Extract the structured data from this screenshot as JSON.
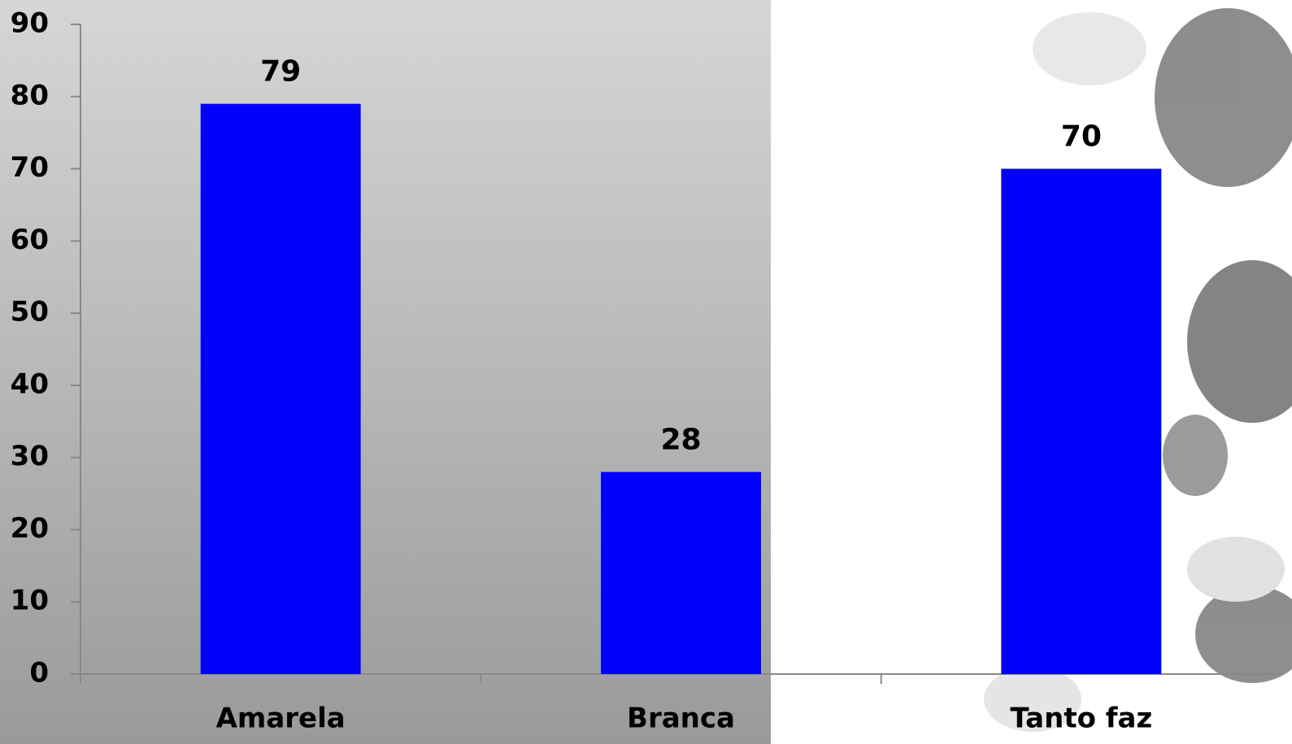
{
  "chart_data": {
    "type": "bar",
    "categories": [
      "Amarela",
      "Branca",
      "Tanto faz"
    ],
    "values": [
      79,
      28,
      70
    ],
    "color": "#0000ff",
    "ylim": [
      0,
      90
    ],
    "yticks": [
      0,
      10,
      20,
      30,
      40,
      50,
      60,
      70,
      80,
      90
    ],
    "grid": false
  }
}
